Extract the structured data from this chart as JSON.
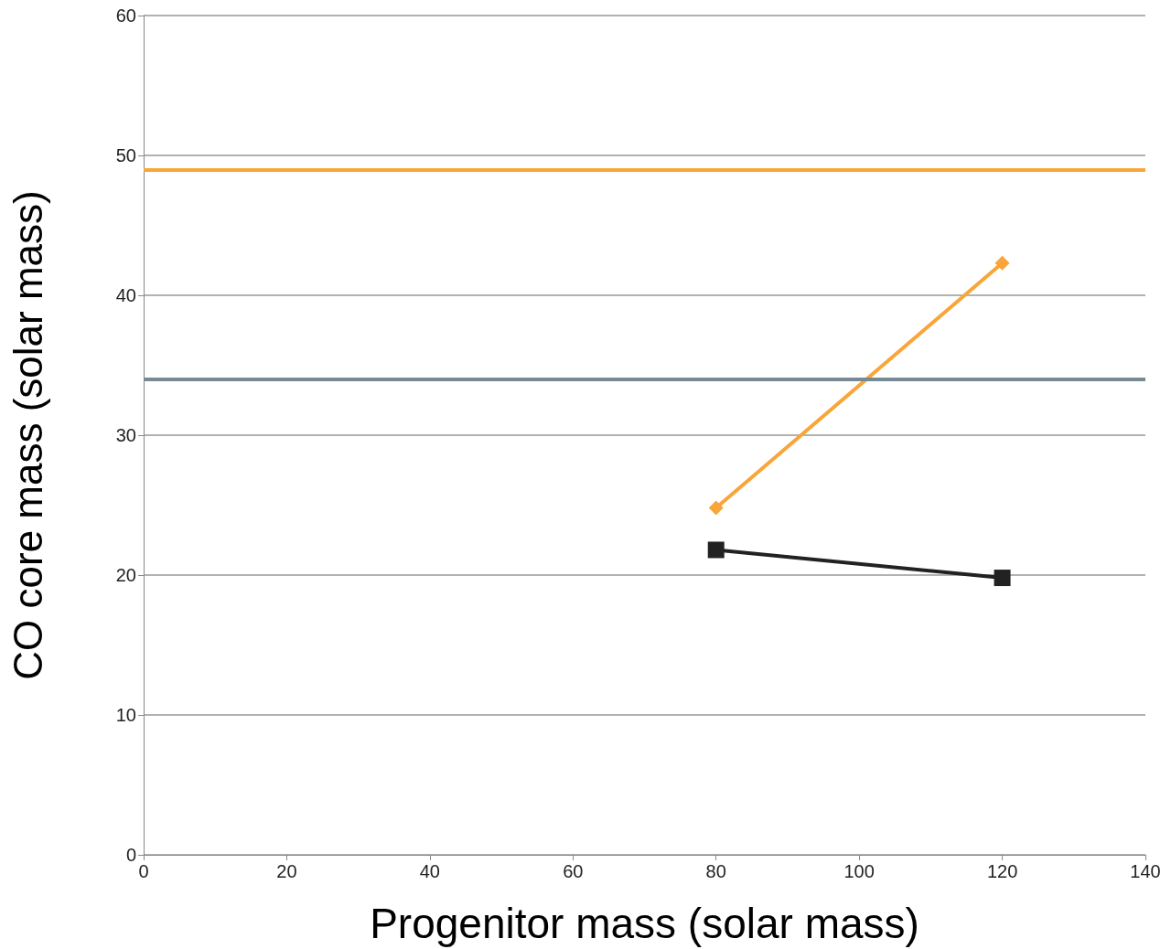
{
  "chart_data": {
    "type": "line",
    "xlabel": "Progenitor mass (solar mass)",
    "ylabel": "CO core mass (solar mass)",
    "xlim": [
      0,
      140
    ],
    "xticks": [
      0,
      20,
      40,
      60,
      80,
      100,
      120,
      140
    ],
    "ylim": [
      0,
      60
    ],
    "yticks": [
      0,
      10,
      20,
      30,
      40,
      50,
      60
    ],
    "grid": "y",
    "x": [
      80,
      120
    ],
    "series": [
      {
        "color": "#f9a53a",
        "values": [
          24.8,
          42.3
        ],
        "marker": "diamond"
      },
      {
        "color": "#222222",
        "values": [
          21.8,
          19.8
        ],
        "marker": "square"
      }
    ],
    "ref_lines": [
      {
        "axis": "y",
        "value": 49,
        "color": "#f9a53a",
        "line_style": "solid"
      },
      {
        "axis": "y",
        "value": 34,
        "color": "#778a94",
        "line_style": "solid"
      }
    ]
  }
}
